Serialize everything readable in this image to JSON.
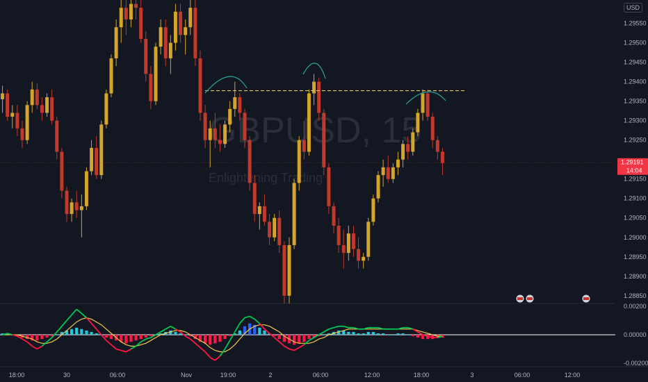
{
  "chart_data": [
    {
      "type": "candlestick",
      "instrument_watermark": "GBPUSD, 15",
      "watermark_sub": "Enlightening Trading",
      "currency": "USD",
      "price_axis": {
        "ticks": [
          "1.29550",
          "1.29500",
          "1.29450",
          "1.29400",
          "1.29350",
          "1.29300",
          "1.29250",
          "1.29150",
          "1.29100",
          "1.29050",
          "1.29000",
          "1.28950",
          "1.28900",
          "1.28850"
        ],
        "ylim": [
          1.2883,
          1.2961
        ]
      },
      "current_price": "1.29191",
      "countdown": "14:04",
      "time_axis": [
        "18:00",
        "30",
        "06:00",
        "Nov",
        "19:00",
        "2",
        "06:00",
        "12:00",
        "18:00",
        "3",
        "06:00",
        "12:00"
      ],
      "resistance_level": 1.29377,
      "candles": [
        [
          0,
          1.29355,
          1.2939,
          1.2932,
          1.2937
        ],
        [
          1,
          1.2937,
          1.2938,
          1.293,
          1.2931
        ],
        [
          2,
          1.2931,
          1.2934,
          1.2928,
          1.2932
        ],
        [
          3,
          1.2932,
          1.2934,
          1.2926,
          1.2928
        ],
        [
          4,
          1.2928,
          1.293,
          1.2923,
          1.2925
        ],
        [
          5,
          1.2925,
          1.2935,
          1.2924,
          1.2934
        ],
        [
          6,
          1.2934,
          1.294,
          1.2932,
          1.2938
        ],
        [
          7,
          1.2938,
          1.29395,
          1.2933,
          1.2934
        ],
        [
          8,
          1.2934,
          1.2936,
          1.293,
          1.2932
        ],
        [
          9,
          1.2932,
          1.2937,
          1.2931,
          1.2936
        ],
        [
          10,
          1.2936,
          1.2938,
          1.2929,
          1.293
        ],
        [
          11,
          1.293,
          1.2931,
          1.292,
          1.2922
        ],
        [
          12,
          1.2922,
          1.2923,
          1.291,
          1.2912
        ],
        [
          13,
          1.2912,
          1.2913,
          1.2904,
          1.2906
        ],
        [
          14,
          1.2906,
          1.291,
          1.2904,
          1.2909
        ],
        [
          15,
          1.2909,
          1.2912,
          1.2905,
          1.2907
        ],
        [
          16,
          1.2907,
          1.2911,
          1.29,
          1.2908
        ],
        [
          17,
          1.2908,
          1.2918,
          1.2907,
          1.2917
        ],
        [
          18,
          1.2917,
          1.2925,
          1.2916,
          1.2923
        ],
        [
          19,
          1.2923,
          1.2926,
          1.2915,
          1.2916
        ],
        [
          20,
          1.2916,
          1.293,
          1.2915,
          1.2929
        ],
        [
          21,
          1.2929,
          1.2938,
          1.2928,
          1.2937
        ],
        [
          22,
          1.2937,
          1.2947,
          1.2936,
          1.2946
        ],
        [
          23,
          1.2946,
          1.2956,
          1.2944,
          1.2954
        ],
        [
          24,
          1.2954,
          1.2961,
          1.295,
          1.2959
        ],
        [
          25,
          1.2959,
          1.2961,
          1.2952,
          1.2956
        ],
        [
          26,
          1.2956,
          1.2961,
          1.2954,
          1.296
        ],
        [
          27,
          1.296,
          1.2961,
          1.2956,
          1.2959
        ],
        [
          28,
          1.2959,
          1.2961,
          1.295,
          1.2951
        ],
        [
          29,
          1.2951,
          1.2953,
          1.294,
          1.2942
        ],
        [
          30,
          1.2942,
          1.2944,
          1.2933,
          1.2935
        ],
        [
          31,
          1.2935,
          1.295,
          1.2934,
          1.2949
        ],
        [
          32,
          1.2949,
          1.2956,
          1.2947,
          1.2954
        ],
        [
          33,
          1.2954,
          1.2956,
          1.2944,
          1.2946
        ],
        [
          34,
          1.2946,
          1.2952,
          1.2942,
          1.295
        ],
        [
          35,
          1.295,
          1.296,
          1.2948,
          1.2958
        ],
        [
          36,
          1.2958,
          1.296,
          1.295,
          1.2952
        ],
        [
          37,
          1.2952,
          1.2956,
          1.2947,
          1.2954
        ],
        [
          38,
          1.2954,
          1.2961,
          1.2952,
          1.2959
        ],
        [
          39,
          1.2959,
          1.2961,
          1.2944,
          1.2946
        ],
        [
          40,
          1.2946,
          1.2948,
          1.293,
          1.2932
        ],
        [
          41,
          1.2932,
          1.2934,
          1.2923,
          1.2925
        ],
        [
          42,
          1.2925,
          1.293,
          1.2918,
          1.2928
        ],
        [
          43,
          1.2928,
          1.2932,
          1.2923,
          1.2925
        ],
        [
          44,
          1.2925,
          1.2929,
          1.2922,
          1.2924
        ],
        [
          45,
          1.2924,
          1.293,
          1.2923,
          1.2929
        ],
        [
          46,
          1.2929,
          1.2935,
          1.2927,
          1.2933
        ],
        [
          47,
          1.2933,
          1.294,
          1.2931,
          1.2936
        ],
        [
          48,
          1.2936,
          1.2937,
          1.293,
          1.2932
        ],
        [
          49,
          1.2932,
          1.2933,
          1.2923,
          1.2925
        ],
        [
          50,
          1.2925,
          1.2926,
          1.2912,
          1.2914
        ],
        [
          51,
          1.2914,
          1.2916,
          1.2904,
          1.2906
        ],
        [
          52,
          1.2906,
          1.2909,
          1.2902,
          1.2908
        ],
        [
          53,
          1.2908,
          1.2911,
          1.2903,
          1.2904
        ],
        [
          54,
          1.2904,
          1.2906,
          1.2898,
          1.29
        ],
        [
          55,
          1.29,
          1.2906,
          1.2899,
          1.2905
        ],
        [
          56,
          1.2905,
          1.2907,
          1.2896,
          1.2898
        ],
        [
          57,
          1.2898,
          1.2899,
          1.2883,
          1.2885
        ],
        [
          58,
          1.2885,
          1.29,
          1.2883,
          1.2898
        ],
        [
          59,
          1.2898,
          1.2915,
          1.2897,
          1.2914
        ],
        [
          60,
          1.2914,
          1.2926,
          1.2912,
          1.2925
        ],
        [
          61,
          1.2925,
          1.293,
          1.292,
          1.2922
        ],
        [
          62,
          1.2922,
          1.2938,
          1.2921,
          1.2937
        ],
        [
          63,
          1.2937,
          1.2942,
          1.2934,
          1.294
        ],
        [
          64,
          1.294,
          1.2941,
          1.293,
          1.2932
        ],
        [
          65,
          1.2932,
          1.2933,
          1.2916,
          1.2918
        ],
        [
          66,
          1.2918,
          1.2919,
          1.2906,
          1.2908
        ],
        [
          67,
          1.2908,
          1.2909,
          1.2901,
          1.2903
        ],
        [
          68,
          1.2903,
          1.2905,
          1.2896,
          1.2898
        ],
        [
          69,
          1.2898,
          1.2902,
          1.2892,
          1.2896
        ],
        [
          70,
          1.2896,
          1.2903,
          1.2894,
          1.2901
        ],
        [
          71,
          1.2901,
          1.2903,
          1.2895,
          1.2897
        ],
        [
          72,
          1.2897,
          1.29,
          1.2892,
          1.2894
        ],
        [
          73,
          1.2894,
          1.2896,
          1.2892,
          1.2895
        ],
        [
          74,
          1.2895,
          1.2905,
          1.2894,
          1.2904
        ],
        [
          75,
          1.2904,
          1.2911,
          1.2903,
          1.291
        ],
        [
          76,
          1.291,
          1.2917,
          1.2909,
          1.2916
        ],
        [
          77,
          1.2916,
          1.292,
          1.2913,
          1.2918
        ],
        [
          78,
          1.2918,
          1.2921,
          1.2914,
          1.2915
        ],
        [
          79,
          1.2915,
          1.2919,
          1.2914,
          1.2918
        ],
        [
          80,
          1.2918,
          1.2922,
          1.2916,
          1.292
        ],
        [
          81,
          1.292,
          1.2925,
          1.2918,
          1.2924
        ],
        [
          82,
          1.2924,
          1.2926,
          1.292,
          1.2922
        ],
        [
          83,
          1.2922,
          1.2928,
          1.2921,
          1.2927
        ],
        [
          84,
          1.2927,
          1.2933,
          1.2926,
          1.2932
        ],
        [
          85,
          1.2932,
          1.2938,
          1.293,
          1.2937
        ],
        [
          86,
          1.2937,
          1.2938,
          1.293,
          1.2931
        ],
        [
          87,
          1.2931,
          1.2932,
          1.2923,
          1.2925
        ],
        [
          88,
          1.2925,
          1.2926,
          1.292,
          1.2922
        ],
        [
          89,
          1.2922,
          1.2923,
          1.2916,
          1.29191
        ]
      ],
      "indicator": {
        "type": "macd",
        "axis_ticks": [
          "0.00200",
          "0.00000",
          "-0.00200"
        ],
        "ylim": [
          -0.0022,
          0.0022
        ],
        "histogram": [
          0.0001,
          0.0001,
          0.0,
          -0.0001,
          -0.0002,
          -0.0003,
          -0.0004,
          -0.0004,
          -0.0003,
          -0.0002,
          -0.0001,
          0.0,
          0.0002,
          0.0003,
          0.0004,
          0.0005,
          0.0004,
          0.0003,
          0.0002,
          0.0001,
          0.0,
          -0.0002,
          -0.0003,
          -0.0004,
          -0.0005,
          -0.0006,
          -0.0005,
          -0.0004,
          -0.0003,
          -0.0002,
          -0.0001,
          0.0,
          0.0001,
          0.0002,
          0.0003,
          0.0002,
          0.0001,
          0.0,
          -0.0001,
          -0.0003,
          -0.0005,
          -0.0006,
          -0.0007,
          -0.0006,
          -0.0005,
          -0.0003,
          -0.0001,
          0.0001,
          0.0003,
          0.0006,
          0.0008,
          0.0007,
          0.0005,
          0.0003,
          0.0001,
          -0.0001,
          -0.0003,
          -0.0005,
          -0.0006,
          -0.0007,
          -0.0006,
          -0.0005,
          -0.0003,
          -0.0002,
          -0.0001,
          0.0,
          0.0001,
          0.0002,
          0.0003,
          0.0003,
          0.0002,
          0.0002,
          0.0001,
          0.0001,
          0.0002,
          0.0002,
          0.0001,
          0.0001,
          0.0,
          0.0,
          0.0001,
          0.0001,
          0.0,
          -0.0001,
          -0.0002,
          -0.0003,
          -0.0003,
          -0.0003,
          -0.0002,
          -0.0002
        ],
        "macd": [
          0.0,
          0.0001,
          0.0,
          -0.0001,
          -0.0003,
          -0.0005,
          -0.0008,
          -0.001,
          -0.0008,
          -0.0005,
          -0.0002,
          0.0002,
          0.0006,
          0.001,
          0.0014,
          0.0018,
          0.0015,
          0.0012,
          0.0008,
          0.0004,
          0.0,
          -0.0004,
          -0.0007,
          -0.001,
          -0.0011,
          -0.0012,
          -0.001,
          -0.0008,
          -0.0005,
          -0.0003,
          -0.0002,
          0.0,
          0.0002,
          0.0004,
          0.0006,
          0.0004,
          0.0002,
          -0.0001,
          -0.0003,
          -0.0006,
          -0.0009,
          -0.0012,
          -0.0016,
          -0.0018,
          -0.0015,
          -0.001,
          -0.0004,
          0.0002,
          0.0008,
          0.0012,
          0.0013,
          0.0011,
          0.0008,
          0.0004,
          0.0001,
          -0.0002,
          -0.0005,
          -0.0008,
          -0.001,
          -0.0011,
          -0.0009,
          -0.0007,
          -0.0004,
          -0.0002,
          0.0,
          0.0002,
          0.0004,
          0.0005,
          0.0006,
          0.0006,
          0.0005,
          0.0005,
          0.0004,
          0.0004,
          0.0005,
          0.0005,
          0.0005,
          0.0004,
          0.0004,
          0.0004,
          0.0004,
          0.0005,
          0.0005,
          0.0004,
          0.0002,
          0.0,
          -0.0001,
          -0.0002,
          -0.0002,
          -0.0001
        ],
        "signal": [
          0.0,
          0.0,
          0.0,
          0.0,
          -0.0001,
          -0.0002,
          -0.0003,
          -0.0005,
          -0.0006,
          -0.0006,
          -0.0005,
          -0.0003,
          0.0,
          0.0003,
          0.0006,
          0.0009,
          0.0011,
          0.0012,
          0.0011,
          0.0009,
          0.0007,
          0.0004,
          0.0001,
          -0.0002,
          -0.0005,
          -0.0007,
          -0.0008,
          -0.0008,
          -0.0007,
          -0.0006,
          -0.0004,
          -0.0002,
          0.0,
          0.0001,
          0.0002,
          0.0003,
          0.0003,
          0.0002,
          0.0,
          -0.0002,
          -0.0004,
          -0.0006,
          -0.0009,
          -0.0011,
          -0.0012,
          -0.0012,
          -0.001,
          -0.0007,
          -0.0003,
          0.0001,
          0.0004,
          0.0006,
          0.0007,
          0.0007,
          0.0006,
          0.0004,
          0.0002,
          -0.0001,
          -0.0003,
          -0.0005,
          -0.0006,
          -0.0006,
          -0.0006,
          -0.0005,
          -0.0003,
          -0.0002,
          0.0,
          0.0001,
          0.0002,
          0.0003,
          0.0004,
          0.0004,
          0.0004,
          0.0004,
          0.0004,
          0.0004,
          0.0004,
          0.0004,
          0.0004,
          0.0004,
          0.0004,
          0.0004,
          0.0004,
          0.0004,
          0.0003,
          0.0002,
          0.0001,
          0.0,
          -0.0001,
          -0.0001
        ]
      }
    }
  ],
  "colors": {
    "background": "#131722",
    "bull": "#d4a52a",
    "bear": "#c0392b",
    "resistance": "#e8c84a",
    "arc": "#26a69a",
    "price_badge": "#f23645",
    "macd_line": "#00c853",
    "signal_line": "#f2c94c",
    "hist_pos": "#26c6da",
    "hist_neg": "#ff1744",
    "hist_blue": "#2962ff"
  }
}
